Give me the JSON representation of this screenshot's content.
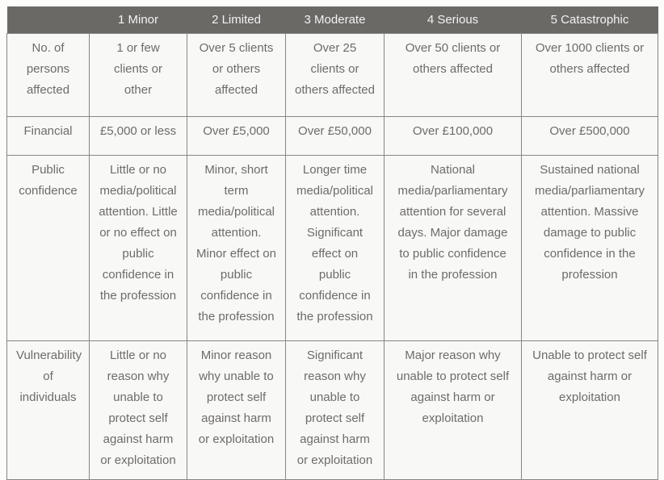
{
  "page": {
    "background_color": "#fcfcfb"
  },
  "table": {
    "description": "Risk impact assessment matrix",
    "colors": {
      "header_background": "#6b6966",
      "header_text": "#f3f2f1",
      "cell_background": "#f8f8f7",
      "cell_text": "#6e6c6a",
      "border": "#868686"
    },
    "header": [
      "",
      "1 Minor",
      "2 Limited",
      "3 Moderate",
      "4 Serious",
      "5 Catastrophic"
    ],
    "rows": [
      {
        "label": "No. of persons affected",
        "cells": [
          "1 or few clients or other",
          "Over 5 clients or others affected",
          "Over 25 clients or others affected",
          "Over 50 clients or others affected",
          "Over 1000 clients or others affected"
        ]
      },
      {
        "label": "Financial",
        "cells": [
          "£5,000 or less",
          "Over £5,000",
          "Over £50,000",
          "Over £100,000",
          "Over £500,000"
        ]
      },
      {
        "label": "Public confidence",
        "cells": [
          "Little or no media/political attention. Little or no effect on public confidence in the profession",
          "Minor, short term media/political attention. Minor effect on public confidence in the profession",
          "Longer time media/political attention. Significant effect on public confidence in the profession",
          "National media/parliamentary attention for several days. Major damage to public confidence in the profession",
          "Sustained national media/parliamentary attention. Massive damage to public confidence in the profession"
        ]
      },
      {
        "label": "Vulnerability of individuals",
        "cells": [
          "Little or no reason why unable to protect self against harm or exploitation",
          "Minor reason why unable to protect self against harm or exploitation",
          "Significant reason why unable to protect self against harm or exploitation",
          "Major reason why unable to protect self against harm or exploitation",
          "Unable to protect self against harm or exploitation"
        ]
      }
    ]
  }
}
